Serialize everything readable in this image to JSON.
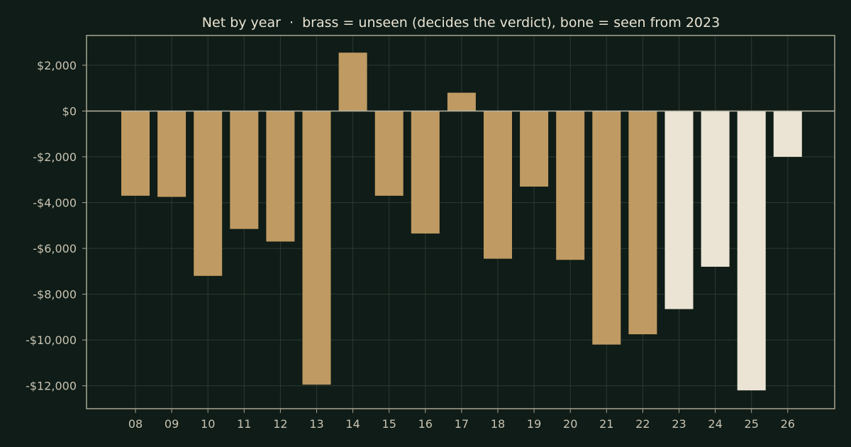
{
  "chart_data": {
    "type": "bar",
    "title": "Net by year  ·  brass = unseen (decides the verdict), bone = seen from 2023",
    "xlabel": "",
    "ylabel": "",
    "categories": [
      "08",
      "09",
      "10",
      "11",
      "12",
      "13",
      "14",
      "15",
      "16",
      "17",
      "18",
      "19",
      "20",
      "21",
      "22",
      "23",
      "24",
      "25",
      "26"
    ],
    "values": [
      -3700,
      -3750,
      -7200,
      -5150,
      -5700,
      -11950,
      2550,
      -3700,
      -5350,
      800,
      -6450,
      -3300,
      -6500,
      -10200,
      -9750,
      -8650,
      -6800,
      -12200,
      -2000
    ],
    "bar_groups": [
      "unseen",
      "unseen",
      "unseen",
      "unseen",
      "unseen",
      "unseen",
      "unseen",
      "unseen",
      "unseen",
      "unseen",
      "unseen",
      "unseen",
      "unseen",
      "unseen",
      "unseen",
      "seen",
      "seen",
      "seen",
      "seen"
    ],
    "ylim": [
      -13000,
      3300
    ],
    "yticks": [
      2000,
      0,
      -2000,
      -4000,
      -6000,
      -8000,
      -10000,
      -12000
    ],
    "ytick_labels": [
      "$2,000",
      "$0",
      "-$2,000",
      "-$4,000",
      "-$6,000",
      "-$8,000",
      "-$10,000",
      "-$12,000"
    ],
    "grid": true,
    "legend": "none",
    "colors": {
      "background": "#0f1c17",
      "unseen": "#bf9a62",
      "seen": "#ebe4d4"
    }
  }
}
